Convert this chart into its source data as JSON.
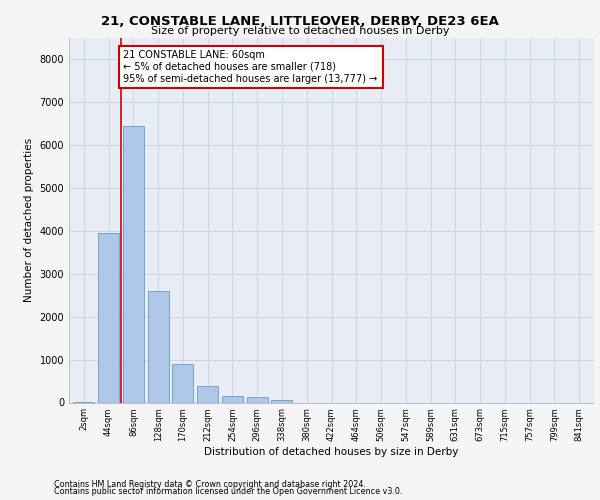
{
  "title1": "21, CONSTABLE LANE, LITTLEOVER, DERBY, DE23 6EA",
  "title2": "Size of property relative to detached houses in Derby",
  "xlabel": "Distribution of detached houses by size in Derby",
  "ylabel": "Number of detached properties",
  "bar_categories": [
    "2sqm",
    "44sqm",
    "86sqm",
    "128sqm",
    "170sqm",
    "212sqm",
    "254sqm",
    "296sqm",
    "338sqm",
    "380sqm",
    "422sqm",
    "464sqm",
    "506sqm",
    "547sqm",
    "589sqm",
    "631sqm",
    "673sqm",
    "715sqm",
    "757sqm",
    "799sqm",
    "841sqm"
  ],
  "bar_values": [
    5,
    3950,
    6450,
    2600,
    900,
    380,
    150,
    120,
    60,
    0,
    0,
    0,
    0,
    0,
    0,
    0,
    0,
    0,
    0,
    0,
    0
  ],
  "bar_color": "#aec6e8",
  "bar_edge_color": "#5a8fc0",
  "annotation_line1": "21 CONSTABLE LANE: 60sqm",
  "annotation_line2": "← 5% of detached houses are smaller (718)",
  "annotation_line3": "95% of semi-detached houses are larger (13,777) →",
  "annotation_box_color": "#ffffff",
  "annotation_box_edge_color": "#cc0000",
  "vline_x": 1.5,
  "vline_color": "#cc0000",
  "ylim": [
    0,
    8500
  ],
  "yticks": [
    0,
    1000,
    2000,
    3000,
    4000,
    5000,
    6000,
    7000,
    8000
  ],
  "grid_color": "#c8d0de",
  "bg_color": "#e8ecf4",
  "fig_bg_color": "#f5f5f5",
  "footer1": "Contains HM Land Registry data © Crown copyright and database right 2024.",
  "footer2": "Contains public sector information licensed under the Open Government Licence v3.0."
}
